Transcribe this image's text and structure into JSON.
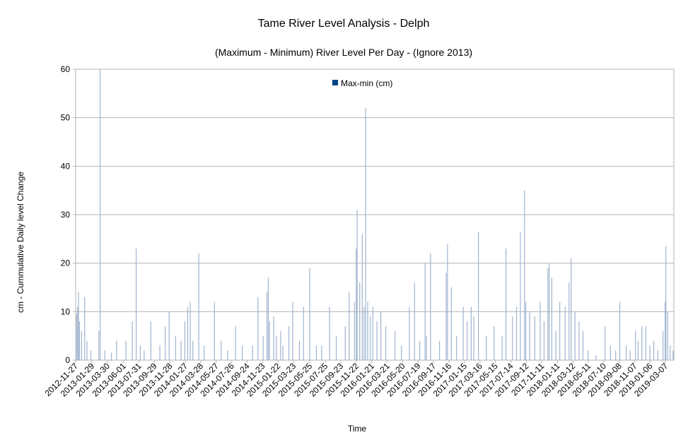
{
  "chart_data": {
    "type": "bar",
    "title": "Tame River Level Analysis - Delph",
    "subtitle": "(Maximum - Minimum) River Level Per Day - (Ignore 2013)",
    "xlabel": "Time",
    "ylabel": "cm - Cummulative Daily level Change",
    "ylim": [
      0,
      60
    ],
    "yticks": [
      0,
      10,
      20,
      30,
      40,
      50,
      60
    ],
    "grid": true,
    "legend_position": "top-center",
    "colors": {
      "series": "#004586",
      "bars": "#9fb4cf",
      "grid": "#b3b3b3"
    },
    "x_start": "2012-11-27",
    "x_end": "2019-04-08",
    "x_tick_labels": [
      "2012-11-27",
      "2013-01-29",
      "2013-03-30",
      "2013-06-01",
      "2013-07-31",
      "2013-09-29",
      "2013-11-28",
      "2014-01-27",
      "2014-03-28",
      "2014-05-27",
      "2014-07-26",
      "2014-09-24",
      "2014-11-23",
      "2015-01-22",
      "2015-03-23",
      "2015-05-25",
      "2015-07-25",
      "2015-09-23",
      "2015-11-22",
      "2016-01-21",
      "2016-03-21",
      "2016-05-20",
      "2016-07-19",
      "2016-09-17",
      "2016-11-16",
      "2017-01-15",
      "2017-03-16",
      "2017-05-15",
      "2017-07-14",
      "2017-09-12",
      "2017-11-11",
      "2018-01-11",
      "2018-03-12",
      "2018-05-11",
      "2018-07-10",
      "2018-09-08",
      "2018-11-07",
      "2019-01-06",
      "2019-03-07"
    ],
    "series": [
      {
        "name": "Max-min (cm)",
        "points": [
          [
            "2012-12-01",
            9.5
          ],
          [
            "2012-12-05",
            11
          ],
          [
            "2012-12-08",
            14
          ],
          [
            "2012-12-12",
            8
          ],
          [
            "2012-12-20",
            6
          ],
          [
            "2013-01-01",
            13
          ],
          [
            "2013-01-10",
            4
          ],
          [
            "2013-01-25",
            2
          ],
          [
            "2013-02-25",
            6
          ],
          [
            "2013-03-02",
            60
          ],
          [
            "2013-03-20",
            2
          ],
          [
            "2013-04-15",
            1.5
          ],
          [
            "2013-05-05",
            4
          ],
          [
            "2013-06-10",
            4
          ],
          [
            "2013-07-05",
            8
          ],
          [
            "2013-07-20",
            23
          ],
          [
            "2013-08-05",
            3
          ],
          [
            "2013-08-20",
            2
          ],
          [
            "2013-09-15",
            8
          ],
          [
            "2013-10-20",
            3
          ],
          [
            "2013-11-10",
            7
          ],
          [
            "2013-11-25",
            10
          ],
          [
            "2013-12-20",
            5
          ],
          [
            "2014-01-10",
            4
          ],
          [
            "2014-01-25",
            8
          ],
          [
            "2014-02-05",
            11
          ],
          [
            "2014-02-15",
            12
          ],
          [
            "2014-02-25",
            4
          ],
          [
            "2014-03-20",
            22
          ],
          [
            "2014-04-10",
            3
          ],
          [
            "2014-05-20",
            12
          ],
          [
            "2014-06-15",
            4
          ],
          [
            "2014-07-10",
            2
          ],
          [
            "2014-08-10",
            7
          ],
          [
            "2014-09-05",
            3
          ],
          [
            "2014-10-15",
            3
          ],
          [
            "2014-11-05",
            13
          ],
          [
            "2014-11-25",
            5
          ],
          [
            "2014-12-10",
            14
          ],
          [
            "2014-12-15",
            17
          ],
          [
            "2014-12-20",
            8
          ],
          [
            "2015-01-05",
            9
          ],
          [
            "2015-01-15",
            5
          ],
          [
            "2015-02-01",
            6
          ],
          [
            "2015-02-10",
            3
          ],
          [
            "2015-03-05",
            7
          ],
          [
            "2015-03-20",
            12
          ],
          [
            "2015-04-15",
            4
          ],
          [
            "2015-05-01",
            11
          ],
          [
            "2015-05-25",
            19
          ],
          [
            "2015-06-20",
            3
          ],
          [
            "2015-07-10",
            3
          ],
          [
            "2015-08-10",
            11
          ],
          [
            "2015-09-05",
            5
          ],
          [
            "2015-10-10",
            7
          ],
          [
            "2015-10-25",
            14
          ],
          [
            "2015-11-15",
            12
          ],
          [
            "2015-11-22",
            23
          ],
          [
            "2015-11-25",
            31
          ],
          [
            "2015-12-05",
            16
          ],
          [
            "2015-12-15",
            26
          ],
          [
            "2015-12-22",
            11
          ],
          [
            "2015-12-28",
            52
          ],
          [
            "2016-01-05",
            12
          ],
          [
            "2016-01-15",
            9
          ],
          [
            "2016-01-25",
            11
          ],
          [
            "2016-02-10",
            8
          ],
          [
            "2016-02-25",
            10
          ],
          [
            "2016-03-15",
            7
          ],
          [
            "2016-04-20",
            6
          ],
          [
            "2016-05-15",
            3
          ],
          [
            "2016-06-15",
            11
          ],
          [
            "2016-07-05",
            16
          ],
          [
            "2016-07-25",
            4
          ],
          [
            "2016-08-15",
            20
          ],
          [
            "2016-08-20",
            5
          ],
          [
            "2016-09-05",
            22
          ],
          [
            "2016-10-10",
            4
          ],
          [
            "2016-11-05",
            18
          ],
          [
            "2016-11-10",
            24
          ],
          [
            "2016-11-25",
            15
          ],
          [
            "2016-12-15",
            5
          ],
          [
            "2017-01-10",
            11
          ],
          [
            "2017-01-25",
            8
          ],
          [
            "2017-02-10",
            11
          ],
          [
            "2017-02-20",
            9
          ],
          [
            "2017-03-10",
            26.5
          ],
          [
            "2017-04-10",
            5
          ],
          [
            "2017-05-10",
            7
          ],
          [
            "2017-06-10",
            5
          ],
          [
            "2017-06-25",
            23
          ],
          [
            "2017-07-20",
            9
          ],
          [
            "2017-08-05",
            11
          ],
          [
            "2017-08-20",
            26.5
          ],
          [
            "2017-09-05",
            35
          ],
          [
            "2017-09-10",
            12
          ],
          [
            "2017-09-25",
            10
          ],
          [
            "2017-10-15",
            9
          ],
          [
            "2017-11-05",
            12
          ],
          [
            "2017-11-20",
            8
          ],
          [
            "2017-12-05",
            19
          ],
          [
            "2017-12-10",
            20
          ],
          [
            "2017-12-20",
            17
          ],
          [
            "2018-01-05",
            6
          ],
          [
            "2018-01-20",
            12
          ],
          [
            "2018-02-10",
            11
          ],
          [
            "2018-02-25",
            16
          ],
          [
            "2018-03-05",
            21
          ],
          [
            "2018-03-20",
            10
          ],
          [
            "2018-04-05",
            8
          ],
          [
            "2018-04-20",
            6
          ],
          [
            "2018-05-10",
            2
          ],
          [
            "2018-06-10",
            1
          ],
          [
            "2018-07-15",
            7
          ],
          [
            "2018-08-05",
            3
          ],
          [
            "2018-08-25",
            2
          ],
          [
            "2018-09-10",
            12
          ],
          [
            "2018-10-05",
            3
          ],
          [
            "2018-10-20",
            2
          ],
          [
            "2018-11-10",
            6
          ],
          [
            "2018-11-20",
            4
          ],
          [
            "2018-12-05",
            7
          ],
          [
            "2018-12-20",
            7
          ],
          [
            "2019-01-05",
            3
          ],
          [
            "2019-01-20",
            4
          ],
          [
            "2019-02-05",
            2
          ],
          [
            "2019-02-25",
            6
          ],
          [
            "2019-03-05",
            12
          ],
          [
            "2019-03-08",
            23.5
          ],
          [
            "2019-03-15",
            10
          ],
          [
            "2019-03-25",
            3
          ],
          [
            "2019-04-05",
            2
          ]
        ]
      }
    ]
  }
}
